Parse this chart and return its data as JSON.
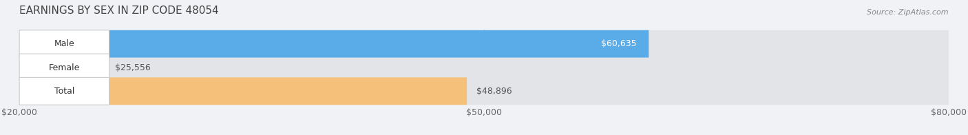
{
  "title": "EARNINGS BY SEX IN ZIP CODE 48054",
  "source": "Source: ZipAtlas.com",
  "categories": [
    "Male",
    "Female",
    "Total"
  ],
  "values": [
    60635,
    25556,
    48896
  ],
  "bar_colors": [
    "#5aace8",
    "#f4a0b8",
    "#f5c07a"
  ],
  "label_inside": [
    true,
    false,
    false
  ],
  "xlim_min": 20000,
  "xlim_max": 80000,
  "xticks": [
    20000,
    50000,
    80000
  ],
  "xtick_labels": [
    "$20,000",
    "$50,000",
    "$80,000"
  ],
  "bar_height": 0.58,
  "background_color": "#f0f2f5",
  "bar_bg_color": "#e2e4e8",
  "title_fontsize": 11,
  "axis_fontsize": 9,
  "label_fontsize": 9,
  "value_labels": [
    "$60,635",
    "$25,556",
    "$48,896"
  ]
}
